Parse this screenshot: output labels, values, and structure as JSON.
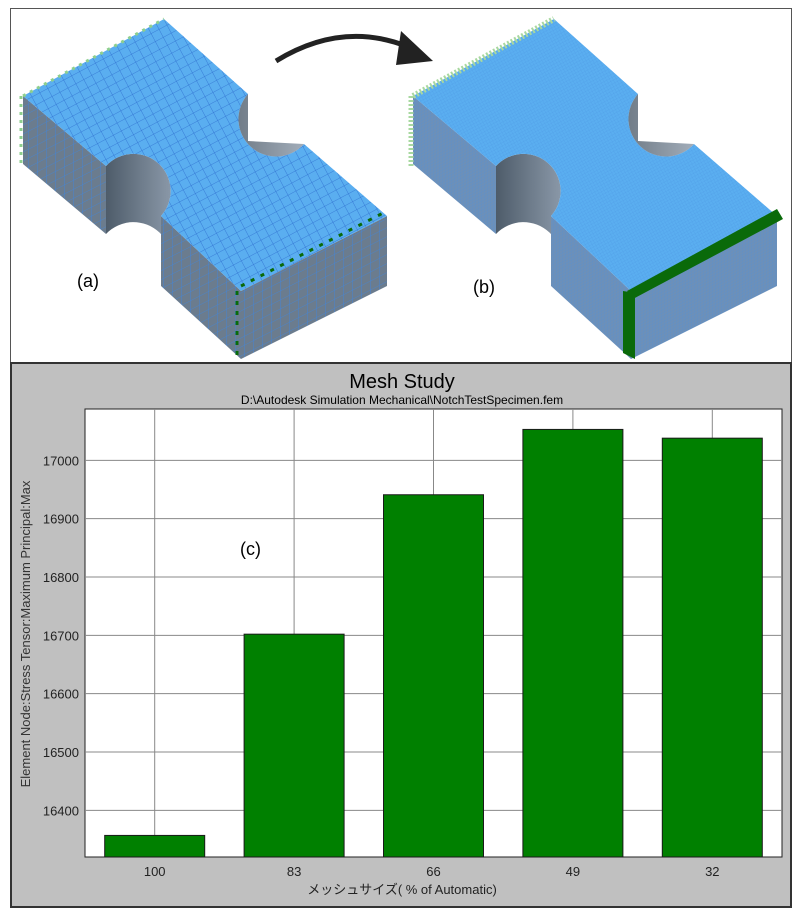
{
  "panels": {
    "a_label": "(a)",
    "b_label": "(b)",
    "c_label": "(c)"
  },
  "colors": {
    "mesh_face": "#5aaef0",
    "mesh_side": "#6b7c8e",
    "mesh_lines": "#2f6fd0",
    "load_arrows": "#0a6a0a",
    "constraints": "#8ecf8e",
    "bar": "#008000",
    "chart_bg": "#c0c0c0"
  },
  "chart_data": {
    "type": "bar",
    "title": "Mesh Study",
    "subtitle": "D:\\Autodesk Simulation Mechanical\\NotchTestSpecimen.fem",
    "xlabel": "メッシュサイズ( % of Automatic)",
    "ylabel": "Element Node:Stress Tensor:Maximum Principal:Max",
    "categories": [
      "100",
      "83",
      "66",
      "49",
      "32"
    ],
    "values": [
      16357,
      16702,
      16941,
      17053,
      17038
    ],
    "yticks": [
      16400,
      16500,
      16600,
      16700,
      16800,
      16900,
      17000
    ],
    "ytick_labels": [
      "16400",
      "16500",
      "16600",
      "16700",
      "16800",
      "16900",
      "17000"
    ],
    "ylim": [
      16320,
      17088
    ],
    "grid": true,
    "legend": "none"
  }
}
